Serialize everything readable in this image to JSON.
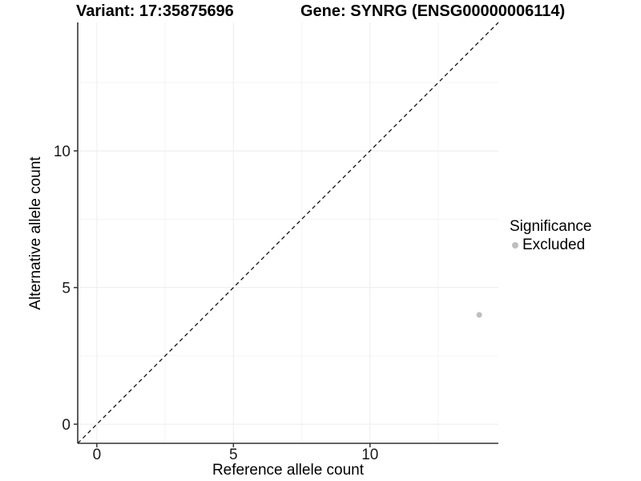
{
  "chart_data": {
    "type": "scatter",
    "titles": {
      "variant": "Variant: 17:35875696",
      "gene": "Gene: SYNRG (ENSG00000006114)"
    },
    "xlabel": "Reference allele count",
    "ylabel": "Alternative allele count",
    "xlim": [
      -0.7,
      14.7
    ],
    "ylim": [
      -0.7,
      14.7
    ],
    "x_major_ticks": [
      0,
      5,
      10
    ],
    "y_major_ticks": [
      0,
      5,
      10
    ],
    "x_minor_ticks": [
      2.5,
      7.5,
      12.5
    ],
    "y_minor_ticks": [
      2.5,
      7.5,
      12.5
    ],
    "grid": true,
    "identity_line": {
      "slope": 1,
      "intercept": 0,
      "style": "dashed",
      "color": "#000000"
    },
    "points": [
      {
        "x": 14,
        "y": 4,
        "significance": "Excluded"
      }
    ],
    "legend": {
      "title": "Significance",
      "position": "right",
      "items": [
        {
          "label": "Excluded",
          "color": "#bebebe"
        }
      ]
    },
    "colors": {
      "axis_line": "#333333",
      "tick_label": "#1a1a1a",
      "grid_major": "#ececec",
      "grid_minor": "#f4f4f4",
      "background": "#ffffff"
    }
  }
}
